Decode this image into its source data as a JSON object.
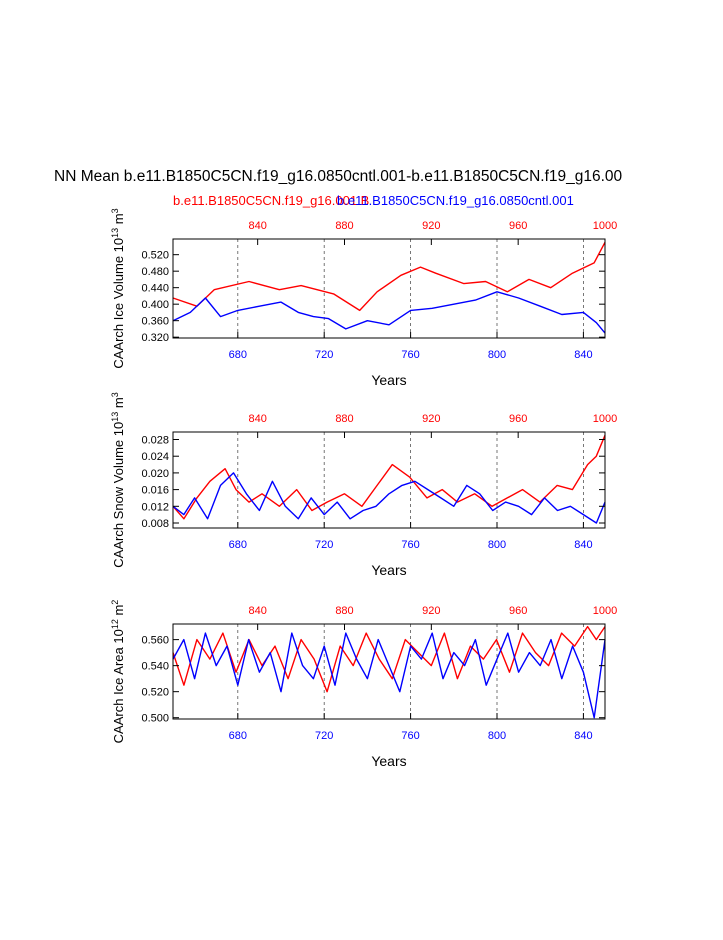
{
  "title": "NN Mean b.e11.B1850C5CN.f19_g16.0850cntl.001-b.e11.B1850C5CN.f19_g16.00",
  "subtitle_red": "b.e11.B1850C5CN.f19_g16.001 B",
  "subtitle_blue": "b.e11.B1850C5CN.f19_g16.0850cntl.001",
  "colors": {
    "red": "#ff0000",
    "blue": "#0000ff",
    "axis": "#000000",
    "grid": "#555555"
  },
  "chart_data": [
    {
      "type": "line",
      "id": "ice-volume",
      "ylabel_main": "CAArch Ice Volume 10",
      "ylabel_exp": "13",
      "ylabel_unit": " m",
      "ylabel_unit_exp": "3",
      "xlabel": "Years",
      "ylim": [
        0.318,
        0.558
      ],
      "yticks": [
        "0.320",
        "0.360",
        "0.400",
        "0.440",
        "0.480",
        "0.520"
      ],
      "ytick_values": [
        0.32,
        0.36,
        0.4,
        0.44,
        0.48,
        0.52
      ],
      "xlim_bottom": [
        650,
        850
      ],
      "xticks_bottom": [
        680,
        720,
        760,
        800,
        840
      ],
      "xlim_top": [
        801,
        1000
      ],
      "xticks_top": [
        840,
        880,
        920,
        960,
        1000
      ],
      "series": [
        {
          "name": "b.e11.B1850C5CN.f19_g16.001",
          "color": "red",
          "axis": "top",
          "x": [
            801,
            812,
            820,
            836,
            850,
            860,
            875,
            887,
            895,
            906,
            915,
            922,
            935,
            945,
            955,
            965,
            975,
            985,
            995,
            1000
          ],
          "values": [
            0.415,
            0.395,
            0.435,
            0.455,
            0.435,
            0.445,
            0.425,
            0.385,
            0.43,
            0.47,
            0.49,
            0.475,
            0.45,
            0.455,
            0.43,
            0.46,
            0.44,
            0.475,
            0.5,
            0.55
          ]
        },
        {
          "name": "b.e11.B1850C5CN.f19_g16.0850cntl.001",
          "color": "blue",
          "axis": "bottom",
          "x": [
            650,
            658,
            665,
            672,
            680,
            690,
            700,
            708,
            715,
            722,
            730,
            740,
            750,
            760,
            770,
            780,
            790,
            800,
            810,
            820,
            830,
            840,
            846,
            850
          ],
          "values": [
            0.36,
            0.38,
            0.415,
            0.37,
            0.385,
            0.395,
            0.405,
            0.38,
            0.37,
            0.365,
            0.34,
            0.36,
            0.35,
            0.385,
            0.39,
            0.4,
            0.41,
            0.43,
            0.415,
            0.395,
            0.375,
            0.38,
            0.355,
            0.33
          ]
        }
      ]
    },
    {
      "type": "line",
      "id": "snow-volume",
      "ylabel_main": "CAArch Snow Volume 10",
      "ylabel_exp": "13",
      "ylabel_unit": " m",
      "ylabel_unit_exp": "3",
      "xlabel": "Years",
      "ylim": [
        0.0068,
        0.0298
      ],
      "yticks": [
        "0.008",
        "0.012",
        "0.016",
        "0.020",
        "0.024",
        "0.028"
      ],
      "ytick_values": [
        0.008,
        0.012,
        0.016,
        0.02,
        0.024,
        0.028
      ],
      "xlim_bottom": [
        650,
        850
      ],
      "xticks_bottom": [
        680,
        720,
        760,
        800,
        840
      ],
      "xlim_top": [
        801,
        1000
      ],
      "xticks_top": [
        840,
        880,
        920,
        960,
        1000
      ],
      "series": [
        {
          "name": "b.e11.B1850C5CN.f19_g16.001",
          "color": "red",
          "axis": "top",
          "x": [
            801,
            806,
            812,
            818,
            825,
            830,
            836,
            842,
            850,
            858,
            865,
            872,
            880,
            888,
            895,
            902,
            910,
            918,
            925,
            932,
            940,
            948,
            955,
            962,
            970,
            978,
            985,
            992,
            996,
            1000
          ],
          "values": [
            0.012,
            0.009,
            0.014,
            0.018,
            0.021,
            0.016,
            0.013,
            0.015,
            0.012,
            0.016,
            0.011,
            0.013,
            0.015,
            0.012,
            0.017,
            0.022,
            0.019,
            0.014,
            0.016,
            0.013,
            0.015,
            0.012,
            0.014,
            0.016,
            0.013,
            0.017,
            0.016,
            0.022,
            0.024,
            0.029
          ]
        },
        {
          "name": "b.e11.B1850C5CN.f19_g16.0850cntl.001",
          "color": "blue",
          "axis": "bottom",
          "x": [
            650,
            655,
            660,
            666,
            672,
            678,
            684,
            690,
            696,
            702,
            708,
            714,
            720,
            726,
            732,
            738,
            744,
            750,
            756,
            762,
            768,
            774,
            780,
            786,
            792,
            798,
            804,
            810,
            816,
            822,
            828,
            834,
            840,
            846,
            850
          ],
          "values": [
            0.012,
            0.01,
            0.014,
            0.009,
            0.017,
            0.02,
            0.015,
            0.011,
            0.018,
            0.012,
            0.009,
            0.014,
            0.01,
            0.013,
            0.009,
            0.011,
            0.012,
            0.015,
            0.017,
            0.018,
            0.016,
            0.014,
            0.012,
            0.017,
            0.015,
            0.011,
            0.013,
            0.012,
            0.01,
            0.014,
            0.011,
            0.012,
            0.01,
            0.008,
            0.013
          ]
        }
      ]
    },
    {
      "type": "line",
      "id": "ice-area",
      "ylabel_main": "CAArch Ice Area 10",
      "ylabel_exp": "12",
      "ylabel_unit": " m",
      "ylabel_unit_exp": "2",
      "xlabel": "Years",
      "ylim": [
        0.499,
        0.572
      ],
      "yticks": [
        "0.500",
        "0.520",
        "0.540",
        "0.560"
      ],
      "ytick_values": [
        0.5,
        0.52,
        0.54,
        0.56
      ],
      "xlim_bottom": [
        650,
        850
      ],
      "xticks_bottom": [
        680,
        720,
        760,
        800,
        840
      ],
      "xlim_top": [
        801,
        1000
      ],
      "xticks_top": [
        840,
        880,
        920,
        960,
        1000
      ],
      "series": [
        {
          "name": "b.e11.B1850C5CN.f19_g16.001",
          "color": "red",
          "axis": "top",
          "x": [
            801,
            806,
            812,
            818,
            824,
            830,
            836,
            842,
            848,
            854,
            860,
            866,
            872,
            878,
            884,
            890,
            896,
            902,
            908,
            914,
            920,
            926,
            932,
            938,
            944,
            950,
            956,
            962,
            968,
            974,
            980,
            986,
            992,
            996,
            1000
          ],
          "values": [
            0.55,
            0.525,
            0.56,
            0.545,
            0.565,
            0.535,
            0.56,
            0.54,
            0.555,
            0.53,
            0.56,
            0.545,
            0.52,
            0.555,
            0.54,
            0.565,
            0.545,
            0.53,
            0.56,
            0.55,
            0.54,
            0.565,
            0.53,
            0.555,
            0.545,
            0.56,
            0.535,
            0.565,
            0.55,
            0.54,
            0.565,
            0.555,
            0.57,
            0.56,
            0.57
          ]
        },
        {
          "name": "b.e11.B1850C5CN.f19_g16.0850cntl.001",
          "color": "blue",
          "axis": "bottom",
          "x": [
            650,
            655,
            660,
            665,
            670,
            675,
            680,
            685,
            690,
            695,
            700,
            705,
            710,
            715,
            720,
            725,
            730,
            735,
            740,
            745,
            750,
            755,
            760,
            765,
            770,
            775,
            780,
            785,
            790,
            795,
            800,
            805,
            810,
            815,
            820,
            825,
            830,
            835,
            840,
            845,
            850
          ],
          "values": [
            0.545,
            0.56,
            0.53,
            0.565,
            0.54,
            0.555,
            0.525,
            0.56,
            0.535,
            0.55,
            0.52,
            0.565,
            0.54,
            0.53,
            0.555,
            0.525,
            0.565,
            0.545,
            0.53,
            0.56,
            0.54,
            0.52,
            0.555,
            0.545,
            0.565,
            0.53,
            0.55,
            0.54,
            0.56,
            0.525,
            0.545,
            0.565,
            0.535,
            0.55,
            0.54,
            0.56,
            0.53,
            0.555,
            0.535,
            0.5,
            0.56
          ]
        }
      ]
    }
  ]
}
